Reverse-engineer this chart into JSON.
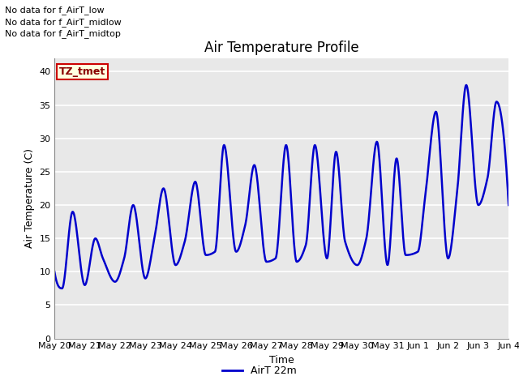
{
  "title": "Air Temperature Profile",
  "xlabel": "Time",
  "ylabel": "Air Temperature (C)",
  "ylim": [
    0,
    42
  ],
  "yticks": [
    0,
    5,
    10,
    15,
    20,
    25,
    30,
    35,
    40
  ],
  "line_color": "#0000cc",
  "line_width": 1.8,
  "background_color": "#e8e8e8",
  "legend_label": "AirT 22m",
  "no_data_texts": [
    "No data for f_AirT_low",
    "No data for f_AirT_midlow",
    "No data for f_AirT_midtop"
  ],
  "tz_label": "TZ_tmet",
  "x_tick_labels": [
    "May 20",
    "May 21",
    "May 22",
    "May 23",
    "May 24",
    "May 25",
    "May 26",
    "May 27",
    "May 28",
    "May 29",
    "May 30",
    "May 31",
    "Jun 1",
    "Jun 2",
    "Jun 3",
    "Jun 4"
  ],
  "key_points_x": [
    0,
    0.25,
    0.6,
    1.0,
    1.35,
    1.6,
    2.0,
    2.3,
    2.6,
    3.0,
    3.3,
    3.6,
    4.0,
    4.3,
    4.65,
    5.0,
    5.3,
    5.6,
    6.0,
    6.3,
    6.6,
    7.0,
    7.3,
    7.65,
    8.0,
    8.3,
    8.6,
    9.0,
    9.3,
    9.6,
    10.0,
    10.3,
    10.65,
    11.0,
    11.3,
    11.6,
    12.0,
    12.25,
    12.6,
    13.0,
    13.3,
    13.6,
    14.0,
    14.3,
    14.6,
    15.0
  ],
  "key_points_y": [
    10,
    7.5,
    19,
    8,
    15,
    12,
    8.5,
    12,
    20,
    9,
    15,
    22.5,
    11,
    14.5,
    23.5,
    12.5,
    13,
    29,
    13,
    17,
    26,
    11.5,
    12,
    29,
    11.5,
    14,
    29,
    12,
    28,
    14.5,
    11,
    15,
    29.5,
    11,
    27,
    12.5,
    13,
    21.5,
    34,
    12,
    22,
    38,
    20,
    24,
    35.5,
    20
  ]
}
